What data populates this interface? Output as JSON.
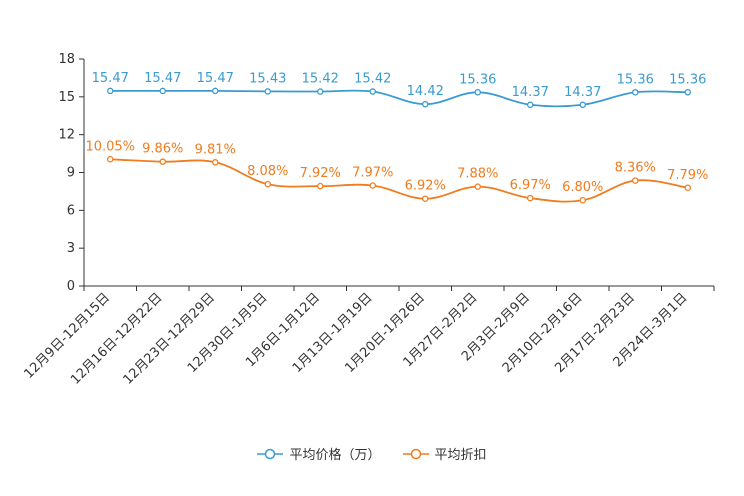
{
  "chart_data": {
    "type": "line",
    "categories": [
      "12月9日-12月15日",
      "12月16日-12月22日",
      "12月23日-12月29日",
      "12月30日-1月5日",
      "1月6日-1月12日",
      "1月13日-1月19日",
      "1月20日-1月26日",
      "1月27日-2月2日",
      "2月3日-2月9日",
      "2月10日-2月16日",
      "2月17日-2月23日",
      "2月24日-3月1日"
    ],
    "ylim": [
      0,
      18
    ],
    "yticks": [
      0,
      3,
      6,
      9,
      12,
      15,
      18
    ],
    "series": [
      {
        "name": "平均价格（万）",
        "color": "#3a9bd2",
        "values": [
          15.47,
          15.47,
          15.47,
          15.43,
          15.42,
          15.42,
          14.42,
          15.36,
          14.37,
          14.37,
          15.36,
          15.36
        ],
        "labels": [
          "15.47",
          "15.47",
          "15.47",
          "15.43",
          "15.42",
          "15.42",
          "14.42",
          "15.36",
          "14.37",
          "14.37",
          "15.36",
          "15.36"
        ]
      },
      {
        "name": "平均折扣",
        "color": "#f07c1e",
        "values": [
          10.05,
          9.86,
          9.81,
          8.08,
          7.92,
          7.97,
          6.92,
          7.88,
          6.97,
          6.8,
          8.36,
          7.79
        ],
        "labels": [
          "10.05%",
          "9.86%",
          "9.81%",
          "8.08%",
          "7.92%",
          "7.97%",
          "6.92%",
          "7.88%",
          "6.97%",
          "6.80%",
          "8.36%",
          "7.79%"
        ]
      }
    ]
  },
  "legend": {
    "price_label": "平均价格（万）",
    "discount_label": "平均折扣"
  }
}
